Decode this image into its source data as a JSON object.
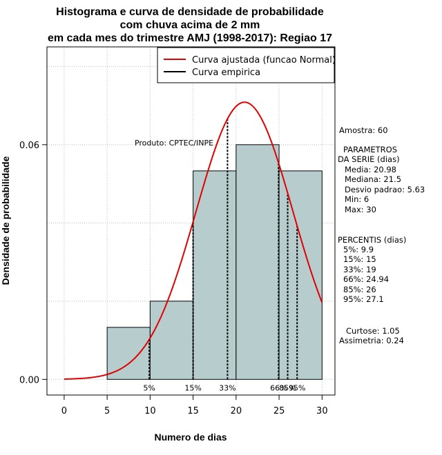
{
  "chart_data": {
    "type": "bar",
    "title": [
      "Histograma e curva de densidade de probabilidade",
      "com chuva acima de 2 mm",
      "em cada mes do trimestre AMJ (1998-2017): Regiao 17"
    ],
    "xlabel": "Numero de dias",
    "ylabel": "Densidade de probabilidade",
    "xlim": [
      -2,
      31.5
    ],
    "ylim": [
      -0.004,
      0.085
    ],
    "xticks": [
      "0",
      "5",
      "10",
      "15",
      "20",
      "25",
      "30"
    ],
    "yticks": [
      "0.00",
      "0.06"
    ],
    "histogram": {
      "bins": [
        [
          5,
          10
        ],
        [
          10,
          15
        ],
        [
          15,
          20
        ],
        [
          20,
          25
        ],
        [
          25,
          30
        ]
      ],
      "density": [
        0.0133,
        0.02,
        0.0533,
        0.06,
        0.0533
      ],
      "color": "#b7cccc"
    },
    "normal_curve": {
      "mean": 20.98,
      "sd": 5.63,
      "from": 0,
      "to": 30,
      "color": "#e00000"
    },
    "percentile_markers": [
      {
        "x": 9.9,
        "label": "5%"
      },
      {
        "x": 15,
        "label": "15%"
      },
      {
        "x": 19,
        "label": "33%"
      },
      {
        "x": 24.94,
        "label": "66%"
      },
      {
        "x": 26,
        "label": "85%"
      },
      {
        "x": 27.1,
        "label": "95%"
      }
    ],
    "legend": [
      {
        "label": "Curva ajustada (funcao Normal)",
        "color": "#e00000"
      },
      {
        "label": "Curva empirica",
        "color": "#000000"
      }
    ],
    "legend_position": "top-right",
    "product_label": "Produto: CPTEC/INPE",
    "grid": true
  },
  "side_panel": {
    "sample": "Amostra: 60",
    "params_title_1": "PARAMETROS",
    "params_title_2": "DA SERIE (dias)",
    "params": [
      "Media: 20.98",
      "Mediana: 21.5",
      "Desvio padrao: 5.63",
      "Min: 6",
      "Max: 30"
    ],
    "percentis_title": "PERCENTIS (dias)",
    "percentis": [
      "5%: 9.9",
      "15%: 15",
      "33%: 19",
      "66%: 24.94",
      "85%: 26",
      "95%: 27.1"
    ],
    "curtose": "Curtose: 1.05",
    "assimetria": "Assimetria: 0.24"
  }
}
